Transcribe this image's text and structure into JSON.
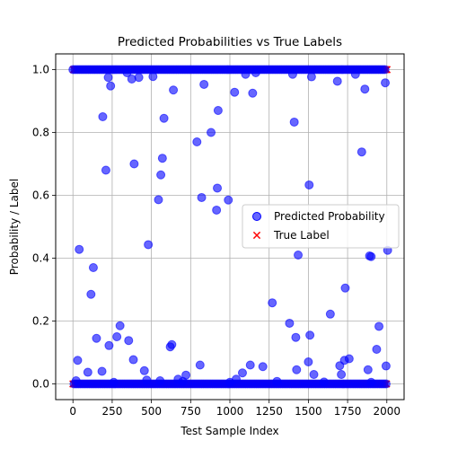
{
  "chart_data": {
    "type": "scatter",
    "title": "Predicted Probabilities vs True Labels",
    "xlabel": "Test Sample Index",
    "ylabel": "Probability / Label",
    "xlim": [
      -110,
      2110
    ],
    "ylim": [
      -0.05,
      1.05
    ],
    "xticks": [
      0,
      250,
      500,
      750,
      1000,
      1250,
      1500,
      1750,
      2000
    ],
    "yticks": [
      0.0,
      0.2,
      0.4,
      0.6,
      0.8,
      1.0
    ],
    "xtick_labels": [
      "0",
      "250",
      "500",
      "750",
      "1000",
      "1250",
      "1500",
      "1750",
      "2000"
    ],
    "ytick_labels": [
      "0.0",
      "0.2",
      "0.4",
      "0.6",
      "0.8",
      "1.0"
    ],
    "grid": true,
    "legend_position": "center-right",
    "series": [
      {
        "name": "Predicted Probability",
        "marker": "circle",
        "color": "#0000ff",
        "opacity": 0.6,
        "points": [
          [
            30,
            0.075
          ],
          [
            40,
            0.428
          ],
          [
            115,
            0.285
          ],
          [
            130,
            0.37
          ],
          [
            150,
            0.145
          ],
          [
            95,
            0.037
          ],
          [
            185,
            0.04
          ],
          [
            190,
            0.85
          ],
          [
            210,
            0.68
          ],
          [
            225,
            0.975
          ],
          [
            240,
            0.948
          ],
          [
            230,
            0.122
          ],
          [
            280,
            0.15
          ],
          [
            300,
            0.185
          ],
          [
            345,
            0.99
          ],
          [
            355,
            0.138
          ],
          [
            375,
            0.97
          ],
          [
            385,
            0.077
          ],
          [
            390,
            0.7
          ],
          [
            420,
            0.975
          ],
          [
            455,
            0.042
          ],
          [
            480,
            0.443
          ],
          [
            510,
            0.978
          ],
          [
            545,
            0.586
          ],
          [
            560,
            0.665
          ],
          [
            570,
            0.718
          ],
          [
            580,
            0.845
          ],
          [
            620,
            0.118
          ],
          [
            630,
            0.125
          ],
          [
            640,
            0.935
          ],
          [
            670,
            0.015
          ],
          [
            720,
            0.028
          ],
          [
            790,
            0.77
          ],
          [
            810,
            0.06
          ],
          [
            820,
            0.593
          ],
          [
            835,
            0.953
          ],
          [
            880,
            0.8
          ],
          [
            915,
            0.553
          ],
          [
            920,
            0.623
          ],
          [
            925,
            0.87
          ],
          [
            990,
            0.585
          ],
          [
            1030,
            0.928
          ],
          [
            1040,
            0.015
          ],
          [
            1080,
            0.035
          ],
          [
            1100,
            0.985
          ],
          [
            1130,
            0.06
          ],
          [
            1145,
            0.925
          ],
          [
            1165,
            0.99
          ],
          [
            1210,
            0.055
          ],
          [
            1270,
            0.258
          ],
          [
            1380,
            0.193
          ],
          [
            1400,
            0.985
          ],
          [
            1410,
            0.833
          ],
          [
            1420,
            0.148
          ],
          [
            1425,
            0.045
          ],
          [
            1435,
            0.41
          ],
          [
            1500,
            0.07
          ],
          [
            1505,
            0.633
          ],
          [
            1510,
            0.155
          ],
          [
            1520,
            0.977
          ],
          [
            1535,
            0.03
          ],
          [
            1640,
            0.222
          ],
          [
            1685,
            0.963
          ],
          [
            1700,
            0.058
          ],
          [
            1710,
            0.03
          ],
          [
            1730,
            0.075
          ],
          [
            1735,
            0.305
          ],
          [
            1760,
            0.08
          ],
          [
            1800,
            0.985
          ],
          [
            1840,
            0.738
          ],
          [
            1860,
            0.938
          ],
          [
            1880,
            0.045
          ],
          [
            1890,
            0.407
          ],
          [
            1900,
            0.405
          ],
          [
            1935,
            0.11
          ],
          [
            1950,
            0.183
          ],
          [
            1990,
            0.958
          ],
          [
            1995,
            0.057
          ],
          [
            2005,
            0.425
          ],
          [
            20,
            0.01
          ],
          [
            260,
            0.005
          ],
          [
            470,
            0.012
          ],
          [
            555,
            0.01
          ],
          [
            700,
            0.008
          ],
          [
            1000,
            0.005
          ],
          [
            1300,
            0.008
          ],
          [
            1600,
            0.006
          ],
          [
            1900,
            0.005
          ]
        ]
      },
      {
        "name": "True Label",
        "marker": "x",
        "color": "#ff0000",
        "values_description": "Two dense bands at y = 0 and y = 1 spanning every sample index from 0 to 2000"
      }
    ]
  }
}
